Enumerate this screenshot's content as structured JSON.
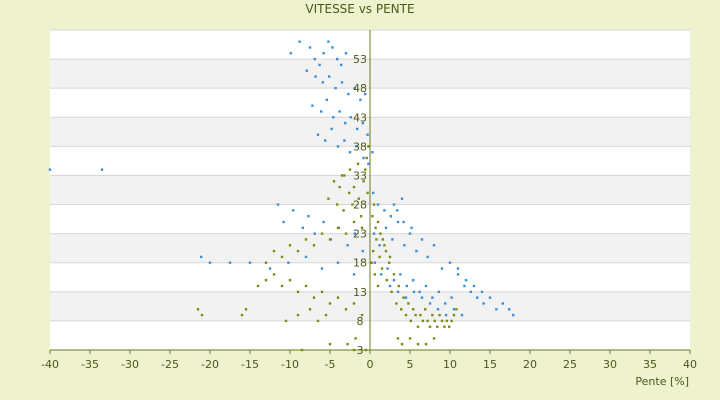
{
  "chart_data": {
    "type": "scatter",
    "title": "VITESSE vs PENTE",
    "xlabel": "Pente [%]",
    "ylabel": "",
    "xlim": [
      -40,
      40
    ],
    "ylim": [
      3,
      58
    ],
    "x_ticks": [
      "-40",
      "-35",
      "-30",
      "-25",
      "-20",
      "-15",
      "-10",
      "-5",
      "0",
      "5",
      "10",
      "15",
      "20",
      "25",
      "30",
      "35",
      "40"
    ],
    "y_ticks": [
      "3",
      "8",
      "13",
      "18",
      "23",
      "28",
      "33",
      "38",
      "43",
      "48",
      "53"
    ],
    "grid": true,
    "colors": {
      "blue": "#3a8fd8",
      "olive": "#7e8a10",
      "band": "#f2f2f2",
      "plot": "#ffffff",
      "axis": "#6b7a1c"
    },
    "series": [
      {
        "color": "blue",
        "points": [
          [
            -40,
            34
          ],
          [
            -33.5,
            34
          ],
          [
            -9.9,
            54
          ],
          [
            -8.8,
            56
          ],
          [
            -7.5,
            55
          ],
          [
            -6.9,
            53
          ],
          [
            -6.3,
            52
          ],
          [
            -5.8,
            54
          ],
          [
            -5.2,
            56
          ],
          [
            -4.7,
            55
          ],
          [
            -4.1,
            53
          ],
          [
            -3.6,
            52
          ],
          [
            -3.0,
            54
          ],
          [
            -7.9,
            51
          ],
          [
            -6.8,
            50
          ],
          [
            -5.9,
            49
          ],
          [
            -5.1,
            50
          ],
          [
            -4.3,
            48
          ],
          [
            -3.5,
            49
          ],
          [
            -2.7,
            47
          ],
          [
            -1.9,
            48
          ],
          [
            -1.2,
            46
          ],
          [
            -0.6,
            47
          ],
          [
            -7.2,
            45
          ],
          [
            -6.1,
            44
          ],
          [
            -5.4,
            46
          ],
          [
            -4.6,
            43
          ],
          [
            -3.8,
            44
          ],
          [
            -3.1,
            42
          ],
          [
            -2.4,
            43
          ],
          [
            -1.6,
            41
          ],
          [
            -0.9,
            42
          ],
          [
            -0.3,
            40
          ],
          [
            -6.5,
            40
          ],
          [
            -5.6,
            39
          ],
          [
            -4.8,
            41
          ],
          [
            -4.0,
            38
          ],
          [
            -3.2,
            39
          ],
          [
            -2.5,
            37
          ],
          [
            -1.7,
            38
          ],
          [
            -0.8,
            36
          ],
          [
            -0.2,
            35
          ],
          [
            0.3,
            37
          ],
          [
            -11.5,
            28
          ],
          [
            -10.8,
            25
          ],
          [
            -9.6,
            27
          ],
          [
            -8.4,
            24
          ],
          [
            -7.7,
            26
          ],
          [
            -6.9,
            23
          ],
          [
            -5.8,
            25
          ],
          [
            -4.9,
            22
          ],
          [
            -3.9,
            24
          ],
          [
            -2.8,
            21
          ],
          [
            -1.9,
            23
          ],
          [
            -0.9,
            20
          ],
          [
            -21.1,
            19
          ],
          [
            -20.0,
            18
          ],
          [
            -17.5,
            18
          ],
          [
            -15.0,
            18
          ],
          [
            -12.5,
            17
          ],
          [
            -10.2,
            18
          ],
          [
            -8.0,
            19
          ],
          [
            -6.0,
            17
          ],
          [
            -4.0,
            18
          ],
          [
            -2.0,
            16
          ],
          [
            0.5,
            23
          ],
          [
            1.2,
            21
          ],
          [
            2.0,
            24
          ],
          [
            2.8,
            22
          ],
          [
            3.5,
            25
          ],
          [
            4.3,
            21
          ],
          [
            5.0,
            23
          ],
          [
            5.8,
            20
          ],
          [
            6.5,
            22
          ],
          [
            7.2,
            19
          ],
          [
            8.0,
            21
          ],
          [
            0.6,
            18
          ],
          [
            1.4,
            16
          ],
          [
            2.2,
            17
          ],
          [
            3.0,
            15
          ],
          [
            3.8,
            16
          ],
          [
            4.6,
            14
          ],
          [
            5.4,
            15
          ],
          [
            6.2,
            13
          ],
          [
            7.0,
            14
          ],
          [
            7.8,
            12
          ],
          [
            8.6,
            13
          ],
          [
            9.4,
            11
          ],
          [
            10.2,
            12
          ],
          [
            11.0,
            16
          ],
          [
            11.8,
            14
          ],
          [
            12.6,
            13
          ],
          [
            13.4,
            12
          ],
          [
            14.2,
            11
          ],
          [
            15.0,
            12
          ],
          [
            15.8,
            10
          ],
          [
            16.6,
            11
          ],
          [
            17.4,
            10
          ],
          [
            17.9,
            9
          ],
          [
            9.0,
            17
          ],
          [
            10.0,
            18
          ],
          [
            11.0,
            17
          ],
          [
            12.0,
            15
          ],
          [
            13.0,
            14
          ],
          [
            14.0,
            13
          ],
          [
            2.5,
            14
          ],
          [
            3.5,
            13
          ],
          [
            4.5,
            12
          ],
          [
            5.5,
            13
          ],
          [
            6.5,
            12
          ],
          [
            7.5,
            11
          ],
          [
            8.5,
            10
          ],
          [
            9.5,
            9
          ],
          [
            10.5,
            10
          ],
          [
            11.5,
            9
          ],
          [
            1.0,
            28
          ],
          [
            1.8,
            27
          ],
          [
            2.6,
            26
          ],
          [
            3.4,
            27
          ],
          [
            4.2,
            25
          ],
          [
            5.2,
            24
          ],
          [
            4.0,
            29
          ],
          [
            3.0,
            28
          ],
          [
            0.4,
            30
          ]
        ]
      },
      {
        "color": "olive",
        "points": [
          [
            -4.5,
            32
          ],
          [
            -3.8,
            31
          ],
          [
            -3.2,
            33
          ],
          [
            -2.6,
            30
          ],
          [
            -2.0,
            31
          ],
          [
            -1.4,
            29
          ],
          [
            -0.8,
            32
          ],
          [
            -0.3,
            30
          ],
          [
            -5.2,
            29
          ],
          [
            -4.1,
            28
          ],
          [
            -3.3,
            27
          ],
          [
            -2.2,
            28
          ],
          [
            -1.1,
            26
          ],
          [
            -13.0,
            18
          ],
          [
            -12.0,
            20
          ],
          [
            -11.0,
            19
          ],
          [
            -10.0,
            21
          ],
          [
            -9.0,
            20
          ],
          [
            -8.0,
            22
          ],
          [
            -7.0,
            21
          ],
          [
            -6.0,
            23
          ],
          [
            -5.0,
            22
          ],
          [
            -4.0,
            24
          ],
          [
            -3.0,
            23
          ],
          [
            -2.0,
            25
          ],
          [
            -1.0,
            24
          ],
          [
            -14.0,
            14
          ],
          [
            -13.0,
            15
          ],
          [
            -12.0,
            16
          ],
          [
            -11.0,
            14
          ],
          [
            -10.0,
            15
          ],
          [
            -9.0,
            13
          ],
          [
            -8.0,
            14
          ],
          [
            -7.0,
            12
          ],
          [
            -6.0,
            13
          ],
          [
            -5.0,
            11
          ],
          [
            -4.0,
            12
          ],
          [
            -3.0,
            10
          ],
          [
            -2.0,
            11
          ],
          [
            -1.0,
            9
          ],
          [
            -21.5,
            10
          ],
          [
            -21.0,
            9
          ],
          [
            -16.0,
            9
          ],
          [
            -15.5,
            10
          ],
          [
            -10.5,
            8
          ],
          [
            -9.0,
            9
          ],
          [
            -7.5,
            10
          ],
          [
            -6.5,
            8
          ],
          [
            -5.5,
            9
          ],
          [
            -8.5,
            3
          ],
          [
            -5.0,
            4
          ],
          [
            -2.0,
            3
          ],
          [
            -1.8,
            5
          ],
          [
            -2.8,
            4
          ],
          [
            -0.5,
            3
          ],
          [
            0.2,
            18
          ],
          [
            0.4,
            20
          ],
          [
            0.6,
            16
          ],
          [
            0.8,
            22
          ],
          [
            1.0,
            14
          ],
          [
            1.2,
            19
          ],
          [
            1.5,
            17
          ],
          [
            1.8,
            21
          ],
          [
            2.1,
            15
          ],
          [
            2.4,
            18
          ],
          [
            2.7,
            13
          ],
          [
            3.0,
            16
          ],
          [
            3.3,
            11
          ],
          [
            3.6,
            14
          ],
          [
            3.9,
            10
          ],
          [
            4.2,
            12
          ],
          [
            4.5,
            9
          ],
          [
            4.8,
            11
          ],
          [
            5.1,
            8
          ],
          [
            5.4,
            10
          ],
          [
            5.7,
            9
          ],
          [
            6.0,
            7
          ],
          [
            6.3,
            9
          ],
          [
            6.6,
            8
          ],
          [
            6.9,
            10
          ],
          [
            7.2,
            8
          ],
          [
            7.5,
            7
          ],
          [
            7.8,
            9
          ],
          [
            8.1,
            8
          ],
          [
            8.4,
            7
          ],
          [
            8.7,
            9
          ],
          [
            9.0,
            8
          ],
          [
            9.3,
            7
          ],
          [
            9.6,
            8
          ],
          [
            9.9,
            7
          ],
          [
            10.2,
            8
          ],
          [
            10.5,
            9
          ],
          [
            10.8,
            10
          ],
          [
            0.3,
            26
          ],
          [
            0.5,
            28
          ],
          [
            0.7,
            24
          ],
          [
            1.0,
            25
          ],
          [
            1.3,
            23
          ],
          [
            1.6,
            22
          ],
          [
            2.0,
            20
          ],
          [
            2.5,
            19
          ],
          [
            3.5,
            5
          ],
          [
            4.0,
            4
          ],
          [
            5.0,
            5
          ],
          [
            6.0,
            4
          ],
          [
            7.0,
            4
          ],
          [
            8.0,
            5
          ],
          [
            -0.2,
            38
          ],
          [
            -0.4,
            36
          ],
          [
            -0.6,
            34
          ],
          [
            -1.5,
            35
          ],
          [
            -2.5,
            34
          ],
          [
            -3.5,
            33
          ]
        ]
      }
    ]
  }
}
